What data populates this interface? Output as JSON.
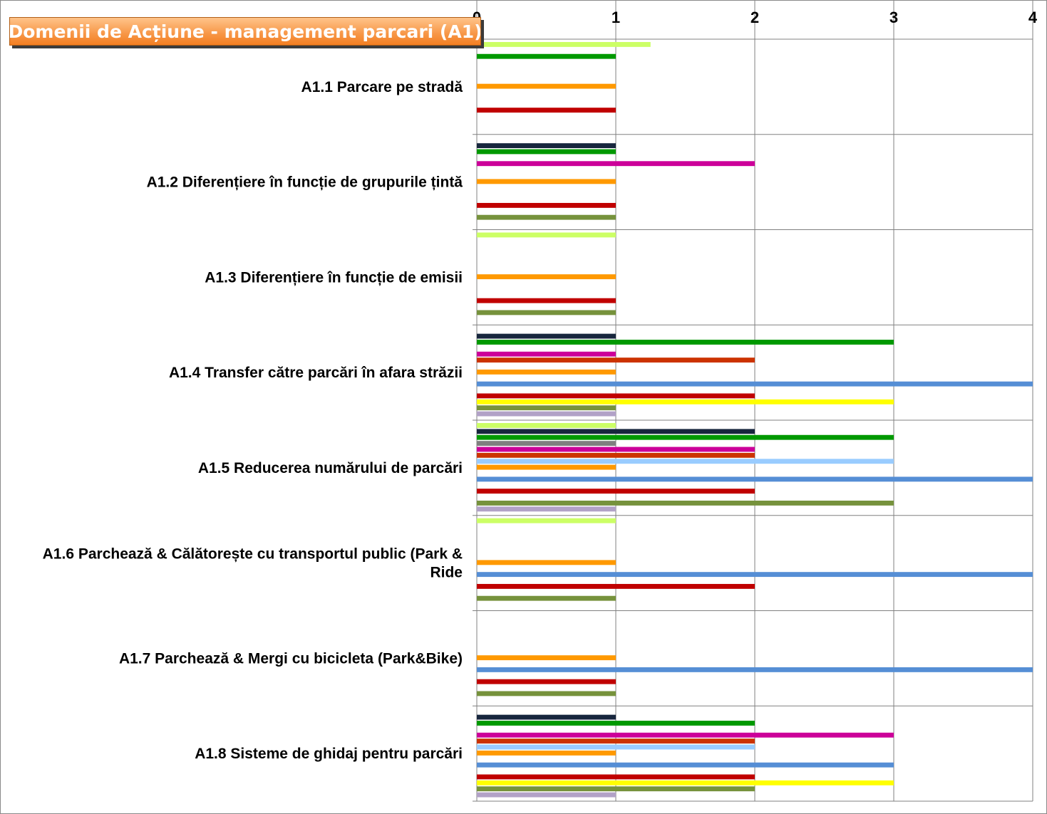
{
  "chart_data": {
    "type": "bar",
    "orientation": "horizontal",
    "title": "Domenii de Acțiune - management parcari (A1)",
    "xlim": [
      0,
      4
    ],
    "x_ticks": [
      "0",
      "1",
      "2",
      "3",
      "4"
    ],
    "grid": true,
    "legend": "none",
    "categories": [
      "A1.1 Parcare pe stradă",
      "A1.2 Diferențiere în funcție de grupurile țintă",
      "A1.3 Diferențiere în funcție de emisii",
      "A1.4 Transfer către parcări în afara străzii",
      "A1.5 Reducerea numărului de parcări",
      "A1.6 Parchează & Călătorește cu transportul public (Park & Ride",
      "A1.7 Parchează & Mergi cu bicicleta (Park&Bike)",
      "A1.8 Sisteme de ghidaj pentru parcări"
    ],
    "series": [
      {
        "color": "#ccff66",
        "values": [
          1.25,
          0,
          1,
          0,
          1,
          1,
          0,
          0
        ]
      },
      {
        "color": "#17263d",
        "values": [
          0,
          1,
          0,
          1,
          2,
          0,
          0,
          1
        ]
      },
      {
        "color": "#009900",
        "values": [
          1,
          1,
          0,
          3,
          3,
          0,
          0,
          2
        ]
      },
      {
        "color": "#7f7f7f",
        "values": [
          0,
          0,
          0,
          0,
          1,
          0,
          0,
          0
        ]
      },
      {
        "color": "#cc0099",
        "values": [
          0,
          2,
          0,
          1,
          2,
          0,
          0,
          3
        ]
      },
      {
        "color": "#cc3300",
        "values": [
          0,
          0,
          0,
          2,
          2,
          0,
          0,
          2
        ]
      },
      {
        "color": "#99ccff",
        "values": [
          0,
          0,
          0,
          0,
          3,
          0,
          0,
          2
        ]
      },
      {
        "color": "#ff9900",
        "values": [
          1,
          1,
          1,
          1,
          1,
          1,
          1,
          1
        ]
      },
      {
        "color": "#ffffff",
        "values": [
          0,
          0,
          0,
          0,
          0,
          0,
          0,
          0
        ]
      },
      {
        "color": "#558ed5",
        "values": [
          0,
          0,
          0,
          4,
          4,
          4,
          4,
          3
        ]
      },
      {
        "color": "#ffffff",
        "values": [
          0,
          0,
          0,
          0,
          0,
          0,
          0,
          0
        ]
      },
      {
        "color": "#c00000",
        "values": [
          1,
          1,
          1,
          2,
          2,
          2,
          1,
          2
        ]
      },
      {
        "color": "#ffff00",
        "values": [
          0,
          0,
          0,
          3,
          0,
          0,
          0,
          3
        ]
      },
      {
        "color": "#76923c",
        "values": [
          0,
          1,
          1,
          1,
          3,
          1,
          1,
          2
        ]
      },
      {
        "color": "#b2a2c7",
        "values": [
          0,
          0,
          0,
          1,
          1,
          0,
          0,
          1
        ]
      }
    ]
  }
}
